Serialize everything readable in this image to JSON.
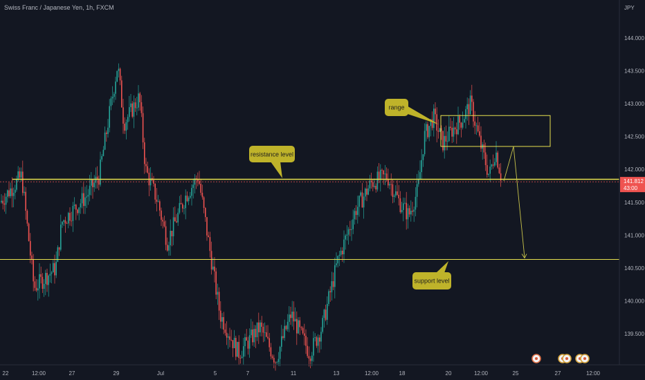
{
  "header": {
    "title": "Swiss Franc / Japanese Yen, 1h, FXCM"
  },
  "axis": {
    "currency": "JPY"
  },
  "price_label": {
    "value": "141.812",
    "countdown": "43:00"
  },
  "colors": {
    "background": "#131722",
    "up": "#26a69a",
    "down": "#ef5350",
    "annotation": "#e8e24f",
    "callout_fill": "#bfb32a",
    "axis_text": "#b2b5be"
  },
  "annotations": {
    "range_label": "range",
    "resistance_label": "resistance level",
    "support_label": "support level"
  },
  "event_icons": [
    "event-icon",
    "event-icon",
    "event-icon",
    "event-icon",
    "event-icon"
  ],
  "chart_data": {
    "type": "candlestick",
    "title": "Swiss Franc / Japanese Yen, 1h, FXCM",
    "ylim": [
      139.0,
      144.5
    ],
    "y_ticks": [
      "144.000",
      "143.500",
      "143.000",
      "142.500",
      "142.000",
      "141.500",
      "141.000",
      "140.500",
      "140.000",
      "139.500"
    ],
    "x_ticks": [
      "22",
      "12:00",
      "27",
      "29",
      "Jul",
      "5",
      "7",
      "11",
      "13",
      "12:00",
      "18",
      "20",
      "12:00",
      "25",
      "27",
      "12:00"
    ],
    "price_path": [
      [
        0,
        141.5
      ],
      [
        0.035,
        141.9
      ],
      [
        0.055,
        140.2
      ],
      [
        0.09,
        140.5
      ],
      [
        0.1,
        141.2
      ],
      [
        0.14,
        141.6
      ],
      [
        0.16,
        141.9
      ],
      [
        0.19,
        143.6
      ],
      [
        0.2,
        142.7
      ],
      [
        0.225,
        143.1
      ],
      [
        0.235,
        142.0
      ],
      [
        0.255,
        141.5
      ],
      [
        0.27,
        140.9
      ],
      [
        0.3,
        141.6
      ],
      [
        0.32,
        141.9
      ],
      [
        0.335,
        141.0
      ],
      [
        0.355,
        139.8
      ],
      [
        0.385,
        139.2
      ],
      [
        0.42,
        139.6
      ],
      [
        0.445,
        139.1
      ],
      [
        0.47,
        139.8
      ],
      [
        0.5,
        139.2
      ],
      [
        0.52,
        139.6
      ],
      [
        0.545,
        140.6
      ],
      [
        0.575,
        141.4
      ],
      [
        0.6,
        141.8
      ],
      [
        0.625,
        141.9
      ],
      [
        0.645,
        141.5
      ],
      [
        0.66,
        141.3
      ],
      [
        0.675,
        141.7
      ],
      [
        0.685,
        142.5
      ],
      [
        0.7,
        142.8
      ],
      [
        0.715,
        142.4
      ],
      [
        0.73,
        142.6
      ],
      [
        0.745,
        142.75
      ],
      [
        0.76,
        143.0
      ],
      [
        0.775,
        142.4
      ],
      [
        0.79,
        141.9
      ],
      [
        0.8,
        142.3
      ],
      [
        0.81,
        141.85
      ]
    ],
    "resistance_level": 141.85,
    "support_level": 140.63,
    "range_box": {
      "price_top": 142.82,
      "price_bottom": 142.35
    },
    "projection": [
      [
        142.35
      ],
      [
        140.65
      ]
    ]
  }
}
